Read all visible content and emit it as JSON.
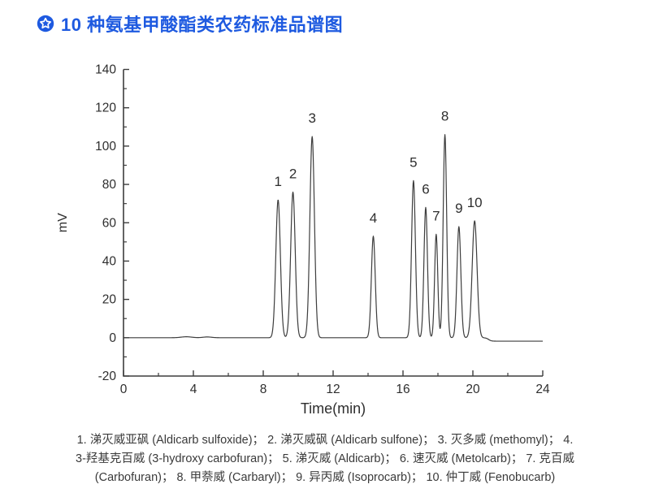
{
  "header": {
    "title": "10 种氨基甲酸酯类农药标准品谱图",
    "accent_color": "#1e5ae0",
    "badge_icon": "star-badge-icon"
  },
  "chart_data": {
    "type": "line",
    "title": "",
    "xlabel": "Time(min)",
    "ylabel": "mV",
    "xlim": [
      0,
      24
    ],
    "ylim": [
      -20,
      140
    ],
    "x_major_ticks": [
      0,
      4,
      8,
      12,
      16,
      20,
      24
    ],
    "x_minor_ticks": [
      2,
      6,
      10,
      14,
      18,
      22
    ],
    "y_major_ticks": [
      -20,
      0,
      20,
      40,
      60,
      80,
      100,
      120,
      140
    ],
    "y_minor_ticks": [
      -10,
      10,
      30,
      50,
      70,
      90,
      110,
      130
    ],
    "grid": false,
    "legend": "none",
    "axis_color": "#3d3d3d",
    "line_color": "#3d3d3d",
    "label_color": "#2e2e2e",
    "peaks": [
      {
        "label": "1",
        "time_min": 8.85,
        "height_mV": 72,
        "sigma_min": 0.13
      },
      {
        "label": "2",
        "time_min": 9.7,
        "height_mV": 76,
        "sigma_min": 0.13
      },
      {
        "label": "3",
        "time_min": 10.8,
        "height_mV": 105,
        "sigma_min": 0.13
      },
      {
        "label": "4",
        "time_min": 14.3,
        "height_mV": 53,
        "sigma_min": 0.11
      },
      {
        "label": "5",
        "time_min": 16.6,
        "height_mV": 82,
        "sigma_min": 0.11
      },
      {
        "label": "6",
        "time_min": 17.3,
        "height_mV": 68,
        "sigma_min": 0.1
      },
      {
        "label": "7",
        "time_min": 17.9,
        "height_mV": 54,
        "sigma_min": 0.09
      },
      {
        "label": "8",
        "time_min": 18.4,
        "height_mV": 106,
        "sigma_min": 0.1
      },
      {
        "label": "9",
        "time_min": 19.2,
        "height_mV": 58,
        "sigma_min": 0.11
      },
      {
        "label": "10",
        "time_min": 20.1,
        "height_mV": 61,
        "sigma_min": 0.14
      }
    ],
    "baseline_mV": 0,
    "baseline_bumps": [
      {
        "time_min": 3.6,
        "height_mV": 0.5,
        "sigma_min": 0.3
      },
      {
        "time_min": 4.8,
        "height_mV": 0.4,
        "sigma_min": 0.25
      }
    ],
    "end_drift": {
      "time_min": 20.9,
      "value_mV": -1.8
    }
  },
  "caption": {
    "lines": [
      "1. 涕灭威亚砜 (Aldicarb sulfoxide)； 2. 涕灭威砜 (Aldicarb sulfone)； 3. 灭多威 (methomyl)； 4.",
      "3-羟基克百威 (3-hydroxy carbofuran)； 5. 涕灭威 (Aldicarb)； 6. 速灭威 (Metolcarb)； 7. 克百威",
      "(Carbofuran)； 8. 甲萘威 (Carbaryl)； 9. 异丙威 (Isoprocarb)； 10. 仲丁威 (Fenobucarb)"
    ]
  }
}
